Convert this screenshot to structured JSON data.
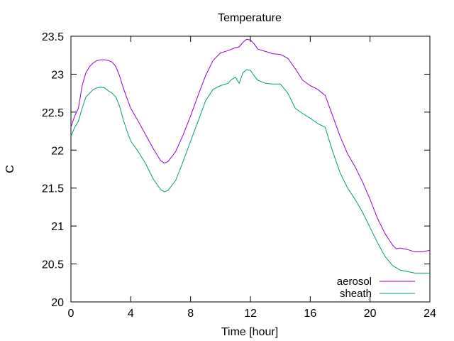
{
  "chart_data": {
    "type": "line",
    "title": "Temperature",
    "xlabel": "Time [hour]",
    "ylabel": "C",
    "xlim": [
      0,
      24
    ],
    "ylim": [
      20,
      23.5
    ],
    "x_ticks": [
      0,
      4,
      8,
      12,
      16,
      20,
      24
    ],
    "y_ticks": [
      20,
      20.5,
      21,
      21.5,
      22,
      22.5,
      23,
      23.5
    ],
    "y_tick_labels": [
      "20",
      "20.5",
      "21",
      "21.5",
      "22",
      "22.5",
      "23",
      "23.5"
    ],
    "grid": false,
    "legend_position": "bottom-right",
    "series": [
      {
        "name": "aerosol",
        "color": "#9400d3",
        "points": [
          [
            0,
            22.3
          ],
          [
            0.25,
            22.45
          ],
          [
            0.5,
            22.55
          ],
          [
            0.75,
            22.85
          ],
          [
            1,
            23.02
          ],
          [
            1.25,
            23.1
          ],
          [
            1.5,
            23.15
          ],
          [
            1.75,
            23.18
          ],
          [
            2,
            23.19
          ],
          [
            2.25,
            23.19
          ],
          [
            2.5,
            23.18
          ],
          [
            2.75,
            23.16
          ],
          [
            3,
            23.1
          ],
          [
            3.25,
            22.98
          ],
          [
            3.5,
            22.82
          ],
          [
            3.75,
            22.68
          ],
          [
            4,
            22.55
          ],
          [
            4.5,
            22.38
          ],
          [
            5,
            22.2
          ],
          [
            5.5,
            22.02
          ],
          [
            6,
            21.86
          ],
          [
            6.25,
            21.83
          ],
          [
            6.5,
            21.85
          ],
          [
            7,
            21.98
          ],
          [
            7.5,
            22.2
          ],
          [
            8,
            22.45
          ],
          [
            8.5,
            22.72
          ],
          [
            9,
            22.98
          ],
          [
            9.5,
            23.18
          ],
          [
            10,
            23.28
          ],
          [
            10.5,
            23.31
          ],
          [
            11,
            23.35
          ],
          [
            11.25,
            23.36
          ],
          [
            11.5,
            23.42
          ],
          [
            11.75,
            23.46
          ],
          [
            12,
            23.45
          ],
          [
            12.25,
            23.4
          ],
          [
            12.5,
            23.33
          ],
          [
            13,
            23.3
          ],
          [
            13.5,
            23.27
          ],
          [
            14,
            23.26
          ],
          [
            14.5,
            23.21
          ],
          [
            15,
            23.07
          ],
          [
            15.5,
            22.92
          ],
          [
            16,
            22.85
          ],
          [
            16.5,
            22.8
          ],
          [
            17,
            22.72
          ],
          [
            17.5,
            22.45
          ],
          [
            18,
            22.18
          ],
          [
            18.5,
            21.95
          ],
          [
            19,
            21.78
          ],
          [
            19.5,
            21.58
          ],
          [
            20,
            21.35
          ],
          [
            20.5,
            21.1
          ],
          [
            21,
            20.9
          ],
          [
            21.5,
            20.75
          ],
          [
            21.75,
            20.7
          ],
          [
            22,
            20.71
          ],
          [
            22.5,
            20.69
          ],
          [
            23,
            20.66
          ],
          [
            23.5,
            20.66
          ],
          [
            24,
            20.68
          ]
        ]
      },
      {
        "name": "sheath",
        "color": "#009e73",
        "points": [
          [
            0,
            22.18
          ],
          [
            0.25,
            22.3
          ],
          [
            0.5,
            22.38
          ],
          [
            0.75,
            22.55
          ],
          [
            1,
            22.7
          ],
          [
            1.25,
            22.75
          ],
          [
            1.5,
            22.8
          ],
          [
            1.75,
            22.82
          ],
          [
            2,
            22.83
          ],
          [
            2.25,
            22.82
          ],
          [
            2.5,
            22.78
          ],
          [
            2.75,
            22.75
          ],
          [
            3,
            22.7
          ],
          [
            3.25,
            22.58
          ],
          [
            3.5,
            22.4
          ],
          [
            3.75,
            22.25
          ],
          [
            4,
            22.12
          ],
          [
            4.5,
            21.98
          ],
          [
            5,
            21.82
          ],
          [
            5.5,
            21.62
          ],
          [
            6,
            21.48
          ],
          [
            6.25,
            21.45
          ],
          [
            6.5,
            21.47
          ],
          [
            7,
            21.6
          ],
          [
            7.5,
            21.85
          ],
          [
            8,
            22.12
          ],
          [
            8.5,
            22.38
          ],
          [
            9,
            22.65
          ],
          [
            9.5,
            22.8
          ],
          [
            10,
            22.85
          ],
          [
            10.5,
            22.88
          ],
          [
            10.75,
            22.93
          ],
          [
            11,
            22.96
          ],
          [
            11.25,
            22.88
          ],
          [
            11.5,
            23.02
          ],
          [
            11.75,
            23.06
          ],
          [
            12,
            23.05
          ],
          [
            12.25,
            22.98
          ],
          [
            12.5,
            22.92
          ],
          [
            13,
            22.88
          ],
          [
            13.5,
            22.87
          ],
          [
            14,
            22.87
          ],
          [
            14.5,
            22.75
          ],
          [
            15,
            22.55
          ],
          [
            15.5,
            22.48
          ],
          [
            16,
            22.42
          ],
          [
            16.5,
            22.35
          ],
          [
            17,
            22.3
          ],
          [
            17.5,
            21.98
          ],
          [
            18,
            21.7
          ],
          [
            18.5,
            21.5
          ],
          [
            19,
            21.35
          ],
          [
            19.5,
            21.18
          ],
          [
            20,
            20.98
          ],
          [
            20.5,
            20.78
          ],
          [
            21,
            20.6
          ],
          [
            21.5,
            20.48
          ],
          [
            22,
            20.42
          ],
          [
            22.5,
            20.4
          ],
          [
            23,
            20.38
          ],
          [
            23.5,
            20.38
          ],
          [
            24,
            20.38
          ]
        ]
      }
    ]
  }
}
